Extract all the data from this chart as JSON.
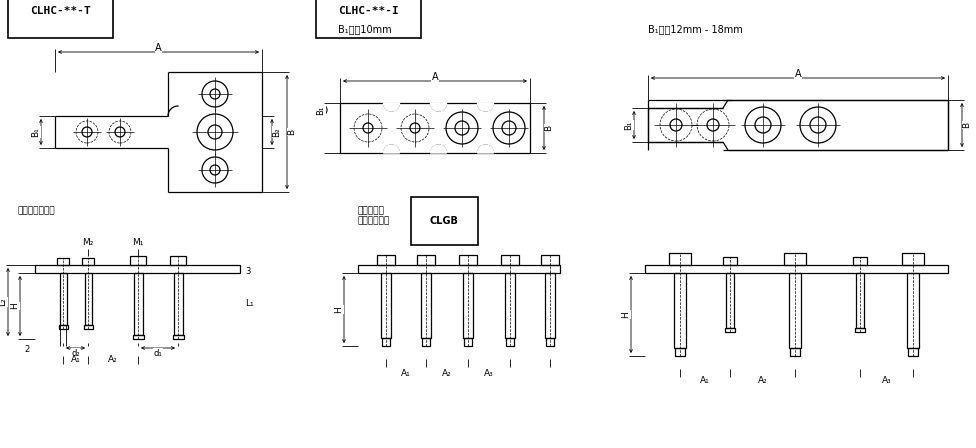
{
  "bg_color": "#ffffff",
  "line_color": "#000000",
  "title1": "CLHC-**-T",
  "title2": "CLHC-**-I",
  "subtitle2": "B₁尺寷10mm",
  "subtitle3": "B₁尺寷12mm - 18mm",
  "label_note1": "内六角柱头螺栋",
  "label_note2": "动力夹块用\n定心导向套筒",
  "label_CLGB": "CLGB"
}
